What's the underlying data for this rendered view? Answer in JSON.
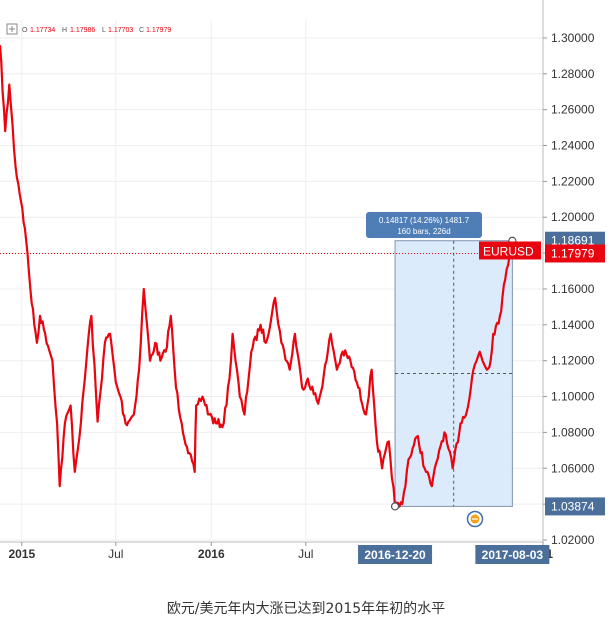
{
  "caption": "欧元/美元年内大涨已达到2015年年初的水平",
  "ohlc": {
    "o_label": "O",
    "o": "1.17734",
    "h_label": "H",
    "h": "1.17986",
    "l_label": "L",
    "l": "1.17703",
    "c_label": "C",
    "c": "1.17979"
  },
  "tooltip": {
    "line1": "0.14817 (14.26%) 1481.7",
    "line2": "160 bars, 226d"
  },
  "colors": {
    "series": "#e8050f",
    "selection_fill": "#d6e7fb",
    "selection_stroke": "#7f95b0",
    "axis_badge": "#4a6f9a",
    "price_badge": "#e8050f",
    "grid": "#eeeeee"
  },
  "chart_data": {
    "type": "line",
    "series": [
      {
        "name": "EURUSD"
      }
    ],
    "y_range": [
      1.02,
      1.31
    ],
    "y_ticks": [
      "1.30000",
      "1.28000",
      "1.26000",
      "1.24000",
      "1.22000",
      "1.20000",
      "1.18000",
      "1.16000",
      "1.14000",
      "1.12000",
      "1.10000",
      "1.08000",
      "1.06000",
      "1.04000",
      "1.02000"
    ],
    "x_range": [
      "2014-11-20",
      "2017-10-01"
    ],
    "x_ticks": [
      {
        "date": "2015-01-01",
        "label": "2015",
        "bold": true
      },
      {
        "date": "2015-07-01",
        "label": "Jul",
        "bold": false
      },
      {
        "date": "2016-01-01",
        "label": "2016",
        "bold": true
      },
      {
        "date": "2016-07-01",
        "label": "Jul",
        "bold": false
      },
      {
        "date": "2017-10-01",
        "label": "201",
        "bold": true
      }
    ],
    "x_highlight_labels": [
      {
        "date": "2016-12-20",
        "label": "2016-12-20"
      },
      {
        "date": "2017-08-03",
        "label": "2017-08-03"
      }
    ],
    "price_badges": [
      {
        "value": 1.18691,
        "label": "1.18691",
        "style": "blue"
      },
      {
        "value": 1.17979,
        "label": "1.17979",
        "style": "red"
      },
      {
        "value": 1.03874,
        "label": "1.03874",
        "style": "blue"
      }
    ],
    "symbol_label": "EURUSD",
    "current_price_line": 1.17979,
    "selection": {
      "start_date": "2016-12-20",
      "end_date": "2017-08-03",
      "low": 1.03874,
      "high": 1.18691
    },
    "points": [
      [
        "2014-11-20",
        1.296
      ],
      [
        "2014-11-30",
        1.248
      ],
      [
        "2014-12-08",
        1.274
      ],
      [
        "2014-12-20",
        1.228
      ],
      [
        "2015-01-02",
        1.205
      ],
      [
        "2015-01-12",
        1.18
      ],
      [
        "2015-01-20",
        1.152
      ],
      [
        "2015-01-30",
        1.13
      ],
      [
        "2015-02-05",
        1.145
      ],
      [
        "2015-02-15",
        1.135
      ],
      [
        "2015-03-01",
        1.12
      ],
      [
        "2015-03-10",
        1.085
      ],
      [
        "2015-03-15",
        1.05
      ],
      [
        "2015-03-25",
        1.085
      ],
      [
        "2015-04-05",
        1.095
      ],
      [
        "2015-04-13",
        1.058
      ],
      [
        "2015-04-25",
        1.086
      ],
      [
        "2015-05-10",
        1.135
      ],
      [
        "2015-05-15",
        1.145
      ],
      [
        "2015-05-27",
        1.086
      ],
      [
        "2015-06-10",
        1.13
      ],
      [
        "2015-06-20",
        1.135
      ],
      [
        "2015-07-01",
        1.108
      ],
      [
        "2015-07-10",
        1.1
      ],
      [
        "2015-07-20",
        1.085
      ],
      [
        "2015-08-05",
        1.09
      ],
      [
        "2015-08-15",
        1.115
      ],
      [
        "2015-08-24",
        1.16
      ],
      [
        "2015-09-05",
        1.12
      ],
      [
        "2015-09-15",
        1.13
      ],
      [
        "2015-09-25",
        1.12
      ],
      [
        "2015-10-05",
        1.125
      ],
      [
        "2015-10-15",
        1.145
      ],
      [
        "2015-10-25",
        1.105
      ],
      [
        "2015-11-05",
        1.085
      ],
      [
        "2015-11-15",
        1.072
      ],
      [
        "2015-11-30",
        1.058
      ],
      [
        "2015-12-03",
        1.095
      ],
      [
        "2015-12-15",
        1.1
      ],
      [
        "2015-12-28",
        1.09
      ],
      [
        "2016-01-10",
        1.085
      ],
      [
        "2016-01-25",
        1.085
      ],
      [
        "2016-02-05",
        1.11
      ],
      [
        "2016-02-11",
        1.135
      ],
      [
        "2016-02-25",
        1.1
      ],
      [
        "2016-03-05",
        1.09
      ],
      [
        "2016-03-18",
        1.125
      ],
      [
        "2016-04-05",
        1.14
      ],
      [
        "2016-04-15",
        1.13
      ],
      [
        "2016-05-03",
        1.155
      ],
      [
        "2016-05-15",
        1.13
      ],
      [
        "2016-05-31",
        1.115
      ],
      [
        "2016-06-10",
        1.135
      ],
      [
        "2016-06-24",
        1.105
      ],
      [
        "2016-07-05",
        1.11
      ],
      [
        "2016-07-25",
        1.096
      ],
      [
        "2016-08-10",
        1.12
      ],
      [
        "2016-08-18",
        1.135
      ],
      [
        "2016-08-30",
        1.115
      ],
      [
        "2016-09-10",
        1.125
      ],
      [
        "2016-09-25",
        1.12
      ],
      [
        "2016-10-10",
        1.105
      ],
      [
        "2016-10-25",
        1.09
      ],
      [
        "2016-11-05",
        1.115
      ],
      [
        "2016-11-15",
        1.075
      ],
      [
        "2016-11-25",
        1.06
      ],
      [
        "2016-12-08",
        1.075
      ],
      [
        "2016-12-20",
        1.0387
      ],
      [
        "2017-01-03",
        1.04
      ],
      [
        "2017-01-15",
        1.065
      ],
      [
        "2017-02-02",
        1.078
      ],
      [
        "2017-02-15",
        1.06
      ],
      [
        "2017-03-01",
        1.05
      ],
      [
        "2017-03-15",
        1.07
      ],
      [
        "2017-03-25",
        1.08
      ],
      [
        "2017-04-10",
        1.06
      ],
      [
        "2017-04-25",
        1.085
      ],
      [
        "2017-05-10",
        1.095
      ],
      [
        "2017-05-20",
        1.115
      ],
      [
        "2017-06-01",
        1.125
      ],
      [
        "2017-06-15",
        1.115
      ],
      [
        "2017-06-22",
        1.12
      ],
      [
        "2017-06-27",
        1.135
      ],
      [
        "2017-07-10",
        1.145
      ],
      [
        "2017-07-20",
        1.165
      ],
      [
        "2017-08-01",
        1.186
      ],
      [
        "2017-08-03",
        1.179
      ]
    ]
  }
}
